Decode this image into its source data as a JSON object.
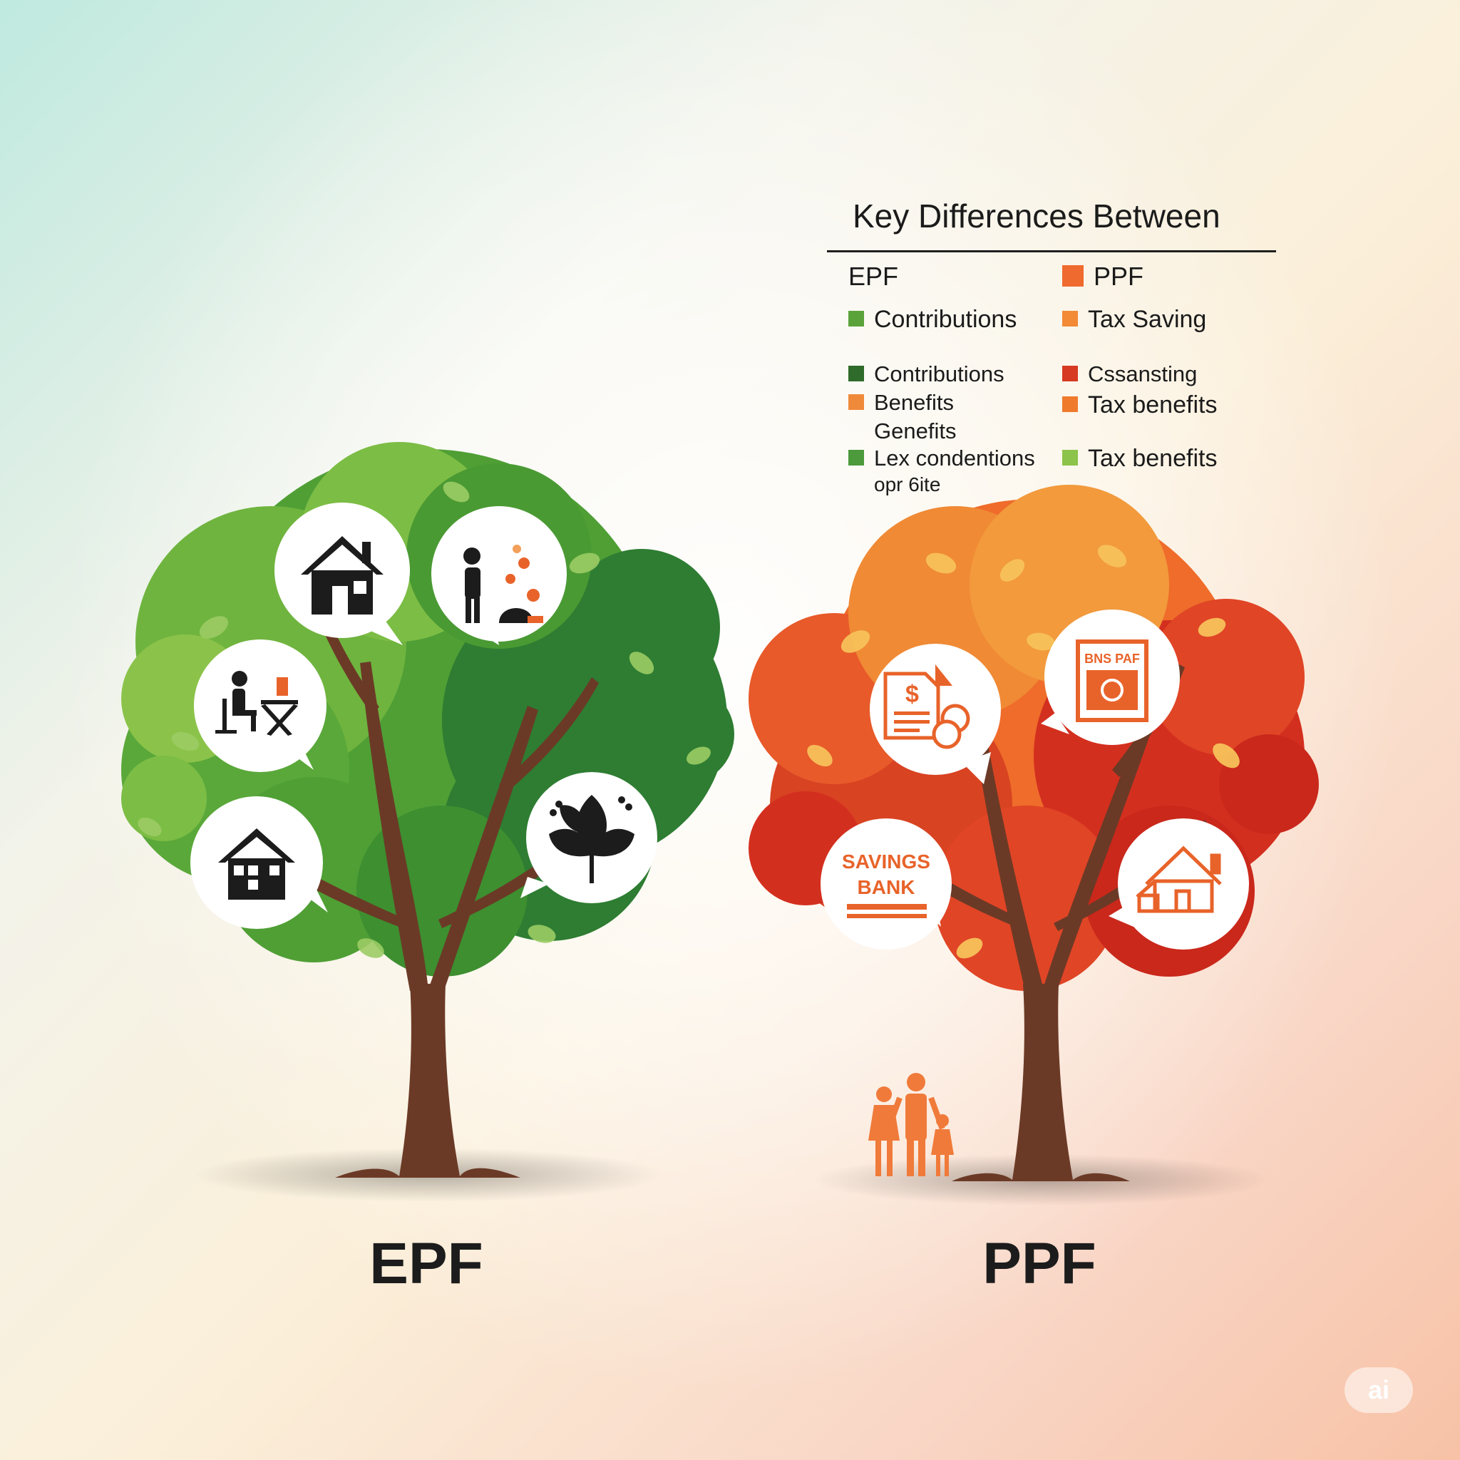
{
  "legend": {
    "title": "Key Differences Between",
    "left_column": {
      "header": "EPF",
      "items": [
        {
          "label": "Contributions",
          "color": "#5aa33b"
        },
        {
          "label": "Contributions",
          "color": "#2f6b2a"
        },
        {
          "label": "Benefits",
          "sub": "Genefits",
          "color": "#f08a3b"
        },
        {
          "label": "Lex condentions",
          "sub": "opr 6ite",
          "color": "#4c9a3c"
        }
      ]
    },
    "right_column": {
      "header": "PPF",
      "header_color": "#ef6a2e",
      "items": [
        {
          "label": "Tax Saving",
          "color": "#f28a36"
        },
        {
          "label": "Cssansting",
          "color": "#d63a22"
        },
        {
          "label": "Tax benefits",
          "color": "#f07a2c"
        },
        {
          "label": "Tax benefits",
          "color": "#8cc34a"
        }
      ]
    }
  },
  "trees": {
    "epf": {
      "label": "EPF",
      "colors": {
        "dark": "#2e7d32",
        "mid": "#4f9f35",
        "light": "#8bc34a"
      },
      "icons": [
        "house-icon",
        "person-coins-icon",
        "desk-worker-icon",
        "house-icon",
        "leaf-icon"
      ]
    },
    "ppf": {
      "label": "PPF",
      "colors": {
        "dark": "#d32f1f",
        "mid": "#ef6c2a",
        "light": "#f7b14a"
      },
      "icons": [
        "document-coins-icon",
        "certificate-icon",
        "savings-bank-icon",
        "houses-icon"
      ],
      "certificate_text": "BNS PAF",
      "bank_text_line1": "SAVINGS",
      "bank_text_line2": "BANK"
    }
  },
  "badge": "ai",
  "colors": {
    "trunk": "#6b3a26",
    "icon_dark": "#1c1c1c",
    "icon_orange": "#e8632a",
    "family": "#f07a3a"
  }
}
